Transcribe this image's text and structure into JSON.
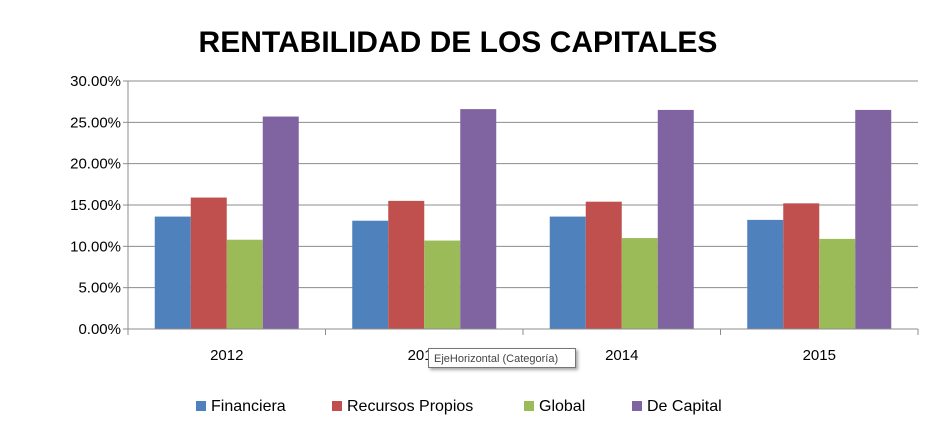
{
  "chart_data": {
    "type": "bar",
    "title": "RENTABILIDAD DE LOS CAPITALES",
    "categories": [
      "2012",
      "2013",
      "2014",
      "2015"
    ],
    "series": [
      {
        "name": "Financiera",
        "color": "#4F81BD",
        "values": [
          13.6,
          13.1,
          13.6,
          13.2
        ]
      },
      {
        "name": "Recursos Propios",
        "color": "#C0504D",
        "values": [
          15.9,
          15.5,
          15.4,
          15.2
        ]
      },
      {
        "name": "Global",
        "color": "#9BBB59",
        "values": [
          10.8,
          10.7,
          11.0,
          10.9
        ]
      },
      {
        "name": "De Capital",
        "color": "#8064A2",
        "values": [
          25.7,
          26.6,
          26.5,
          26.5
        ]
      }
    ],
    "ylim": [
      0,
      30
    ],
    "yticks": [
      "0.00%",
      "5.00%",
      "10.00%",
      "15.00%",
      "20.00%",
      "25.00%",
      "30.00%"
    ],
    "grid": true,
    "legend_position": "bottom"
  },
  "tooltip": {
    "text": "EjeHorizontal (Categoría)"
  }
}
